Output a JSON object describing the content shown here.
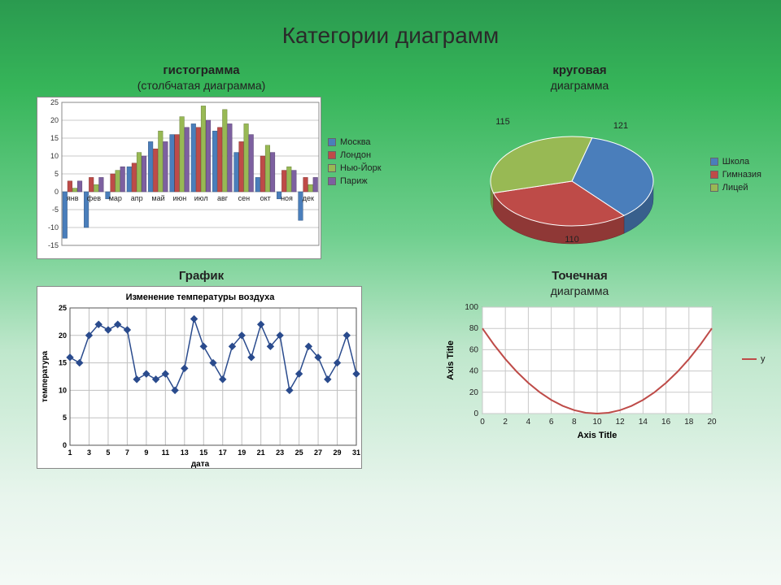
{
  "page": {
    "title": "Категории диаграмм"
  },
  "histogram": {
    "title": "гистограмма",
    "subtitle": "(столбчатая диаграмма)",
    "type": "bar",
    "categories": [
      "янв",
      "фев",
      "мар",
      "апр",
      "май",
      "июн",
      "июл",
      "авг",
      "сен",
      "окт",
      "ноя",
      "дек"
    ],
    "series": [
      {
        "name": "Москва",
        "color": "#4a7ebb",
        "values": [
          -13,
          -10,
          -2,
          7,
          14,
          16,
          19,
          17,
          11,
          4,
          -2,
          -8
        ]
      },
      {
        "name": "Лондон",
        "color": "#be4b48",
        "values": [
          3,
          4,
          5,
          8,
          12,
          16,
          18,
          18,
          14,
          10,
          6,
          4
        ]
      },
      {
        "name": "Нью-Йорк",
        "color": "#98b954",
        "values": [
          1,
          2,
          6,
          11,
          17,
          21,
          24,
          23,
          19,
          13,
          7,
          2
        ]
      },
      {
        "name": "Париж",
        "color": "#7d60a0",
        "values": [
          3,
          4,
          7,
          10,
          14,
          18,
          20,
          19,
          16,
          11,
          6,
          4
        ]
      }
    ],
    "ylim": [
      -15,
      25
    ],
    "ytick_step": 5,
    "grid_color": "#c9c9c9",
    "background_color": "#ffffff",
    "axis_label_fontsize": 9,
    "bar_group_gap": 2
  },
  "pie": {
    "title": "круговая",
    "subtitle": "диаграмма",
    "type": "pie",
    "data_labels": [
      "121",
      "110",
      "115"
    ],
    "segments": [
      {
        "name": "Школа",
        "value": 121,
        "color": "#4a7ebb"
      },
      {
        "name": "Гимназия",
        "value": 110,
        "color": "#be4b48"
      },
      {
        "name": "Лицей",
        "value": 115,
        "color": "#98b954"
      }
    ],
    "depth_color_factor": 0.75,
    "label_fontsize": 11
  },
  "line": {
    "title": "График",
    "inner_title": "Изменение температуры воздуха",
    "xlabel": "дата",
    "ylabel": "температура",
    "type": "line-markers",
    "x": [
      1,
      2,
      3,
      4,
      5,
      6,
      7,
      8,
      9,
      10,
      11,
      12,
      13,
      14,
      15,
      16,
      17,
      18,
      19,
      20,
      21,
      22,
      23,
      24,
      25,
      26,
      27,
      28,
      29,
      30,
      31
    ],
    "y": [
      16,
      15,
      20,
      22,
      21,
      22,
      21,
      12,
      13,
      12,
      13,
      10,
      14,
      23,
      18,
      15,
      12,
      18,
      20,
      16,
      22,
      18,
      20,
      10,
      13,
      18,
      16,
      12,
      15,
      20,
      13
    ],
    "marker_color": "#2a4b8d",
    "line_color": "#2a4b8d",
    "xlim": [
      1,
      31
    ],
    "ylim": [
      0,
      25
    ],
    "ytick_step": 5,
    "xtick_step": 2,
    "grid_color": "#c0c0c0",
    "background_color": "#ffffff",
    "label_fontsize": 10
  },
  "scatter": {
    "title": "Точечная",
    "subtitle": "диаграмма",
    "xlabel": "Axis Title",
    "ylabel": "Axis Title",
    "legend": "y",
    "type": "scatter-line",
    "line_color": "#be4b48",
    "x": [
      0,
      1,
      2,
      3,
      4,
      5,
      6,
      7,
      8,
      9,
      10,
      11,
      12,
      13,
      14,
      15,
      16,
      17,
      18,
      19,
      20
    ],
    "y": [
      80,
      64.8,
      51.2,
      39.2,
      28.8,
      20,
      12.8,
      7.2,
      3.2,
      0.8,
      0,
      0.8,
      3.2,
      7.2,
      12.8,
      20,
      28.8,
      39.2,
      51.2,
      64.8,
      80
    ],
    "xlim": [
      0,
      20
    ],
    "ylim": [
      0,
      100
    ],
    "ytick_step": 20,
    "xtick_step": 2,
    "grid_color": "#c9c9c9",
    "background_color": "#ffffff",
    "label_fontsize": 10
  }
}
